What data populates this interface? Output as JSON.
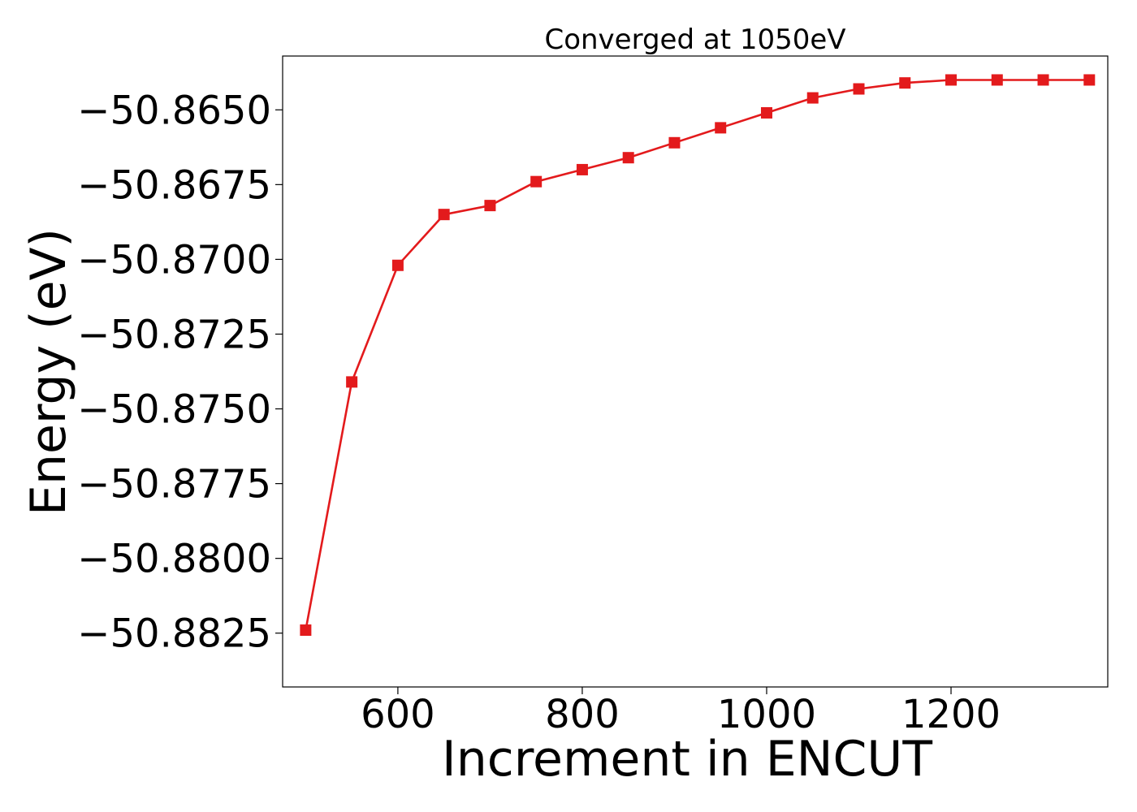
{
  "chart_data": {
    "type": "line",
    "title": "Converged at 1050eV",
    "xlabel": "Increment in ENCUT",
    "ylabel": "Energy (eV)",
    "x_ticks": [
      600,
      800,
      1000,
      1200
    ],
    "y_ticks": [
      -50.8825,
      -50.88,
      -50.8775,
      -50.875,
      -50.8725,
      -50.87,
      -50.8675,
      -50.865
    ],
    "y_tick_labels": [
      "−50.8825",
      "−50.8800",
      "−50.8775",
      "−50.8750",
      "−50.8725",
      "−50.8700",
      "−50.8675",
      "−50.8650"
    ],
    "xlim": [
      475,
      1370
    ],
    "ylim": [
      -50.8843,
      -50.8632
    ],
    "grid": false,
    "series": [
      {
        "color": "#e31a1c",
        "marker": "square",
        "x": [
          500,
          550,
          600,
          650,
          700,
          750,
          800,
          850,
          900,
          950,
          1000,
          1050,
          1100,
          1150,
          1200,
          1250,
          1300,
          1350
        ],
        "y": [
          -50.8824,
          -50.8741,
          -50.8702,
          -50.8685,
          -50.8682,
          -50.8674,
          -50.867,
          -50.8666,
          -50.8661,
          -50.8656,
          -50.8651,
          -50.8646,
          -50.8643,
          -50.8641,
          -50.864,
          -50.864,
          -50.864,
          -50.864
        ]
      }
    ]
  }
}
